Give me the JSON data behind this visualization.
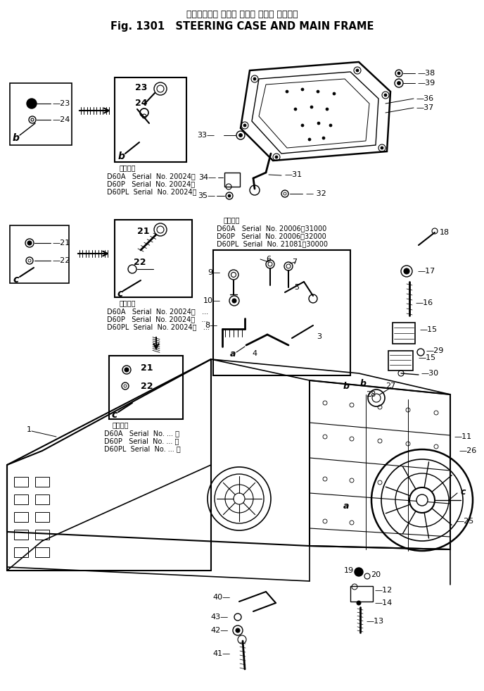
{
  "bg_color": "#ffffff",
  "fig_width": 6.88,
  "fig_height": 9.81,
  "dpi": 100,
  "title_jp": "ステアリング ケース および メイン フレーム",
  "title_en": "Fig. 1301   STEERING CASE AND MAIN FRAME",
  "serial_b": [
    "D60A   Serial  No. 20024～",
    "D60P   Serial  No. 20024～",
    "D60PL  Serial  No. 20024～"
  ],
  "serial_c1": [
    "D60A   Serial  No. 20024～   ...",
    "D60P   Serial  No. 20024～   ...",
    "D60PL  Serial  No. 20024～   ..."
  ],
  "serial_c2": [
    "D60A   Serial  No. ... ～",
    "D60P   Serial  No. ... ～",
    "D60PL  Serial  No. ... ～"
  ],
  "serial_center": [
    "D60A   Serial  No. 20006～31000",
    "D60P   Serial  No. 20006～32000",
    "D60PL  Serial  No. 21081～30000"
  ],
  "kanji_applicable": "適用番号"
}
